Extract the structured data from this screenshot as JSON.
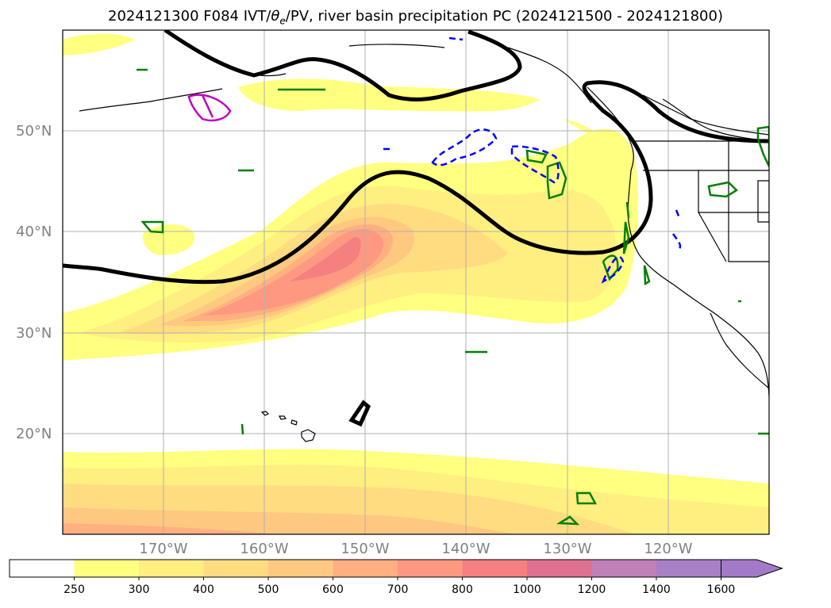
{
  "title": {
    "prefix": "2024121300 F084 IVT/",
    "theta": "θ",
    "theta_sub": "e",
    "suffix": "/PV, river basin precipitation PC (2024121500 - 2024121800)"
  },
  "map": {
    "lon_range": [
      -180,
      -110
    ],
    "lat_range": [
      10,
      60
    ],
    "lat_ticks": [
      {
        "value": 50,
        "label": "50°N"
      },
      {
        "value": 40,
        "label": "40°N"
      },
      {
        "value": 30,
        "label": "30°N"
      },
      {
        "value": 20,
        "label": "20°N"
      }
    ],
    "lon_ticks": [
      {
        "value": -170,
        "label": "170°W"
      },
      {
        "value": -160,
        "label": "160°W"
      },
      {
        "value": -150,
        "label": "150°W"
      },
      {
        "value": -140,
        "label": "140°W"
      },
      {
        "value": -130,
        "label": "130°W"
      },
      {
        "value": -120,
        "label": "120°W"
      }
    ],
    "grid": true
  },
  "colorbar": {
    "levels": [
      "250",
      "300",
      "400",
      "500",
      "600",
      "700",
      "800",
      "1000",
      "1200",
      "1400",
      "1600"
    ],
    "colors": [
      "#ffffff",
      "#ffff80",
      "#ffee80",
      "#ffdc80",
      "#ffc880",
      "#ffaf80",
      "#ff9880",
      "#f58080",
      "#e07090",
      "#c080b8",
      "#a880c8",
      "#a27ac8"
    ],
    "extend": "max"
  },
  "colors": {
    "pv_contour": "#000000",
    "precip_positive": "#008000",
    "precip_negative": "#0000ff",
    "precip_magenta": "#c000c0",
    "coastline": "#000000",
    "grid": "#b0b0b0"
  }
}
